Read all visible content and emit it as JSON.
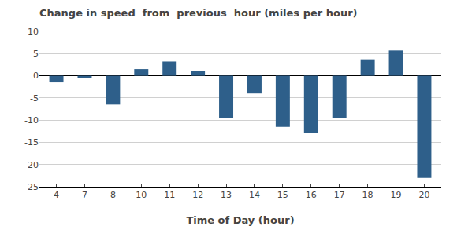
{
  "chart_data": {
    "type": "bar",
    "title": "Change in speed  from  previous  hour (miles per hour)",
    "xlabel": "Time of Day (hour)",
    "categories": [
      4,
      7,
      8,
      10,
      11,
      12,
      13,
      14,
      15,
      16,
      17,
      18,
      19,
      20
    ],
    "values": [
      -1.5,
      -0.5,
      -6.5,
      1.5,
      3.2,
      1.0,
      -9.5,
      -4.0,
      -11.5,
      -13.0,
      -9.5,
      3.7,
      5.7,
      -23.0
    ],
    "color": "#2e5f8a",
    "ylim": [
      -25,
      10
    ],
    "yticks": [
      -25,
      -20,
      -15,
      -10,
      -5,
      0,
      5,
      10
    ],
    "grid": true
  }
}
